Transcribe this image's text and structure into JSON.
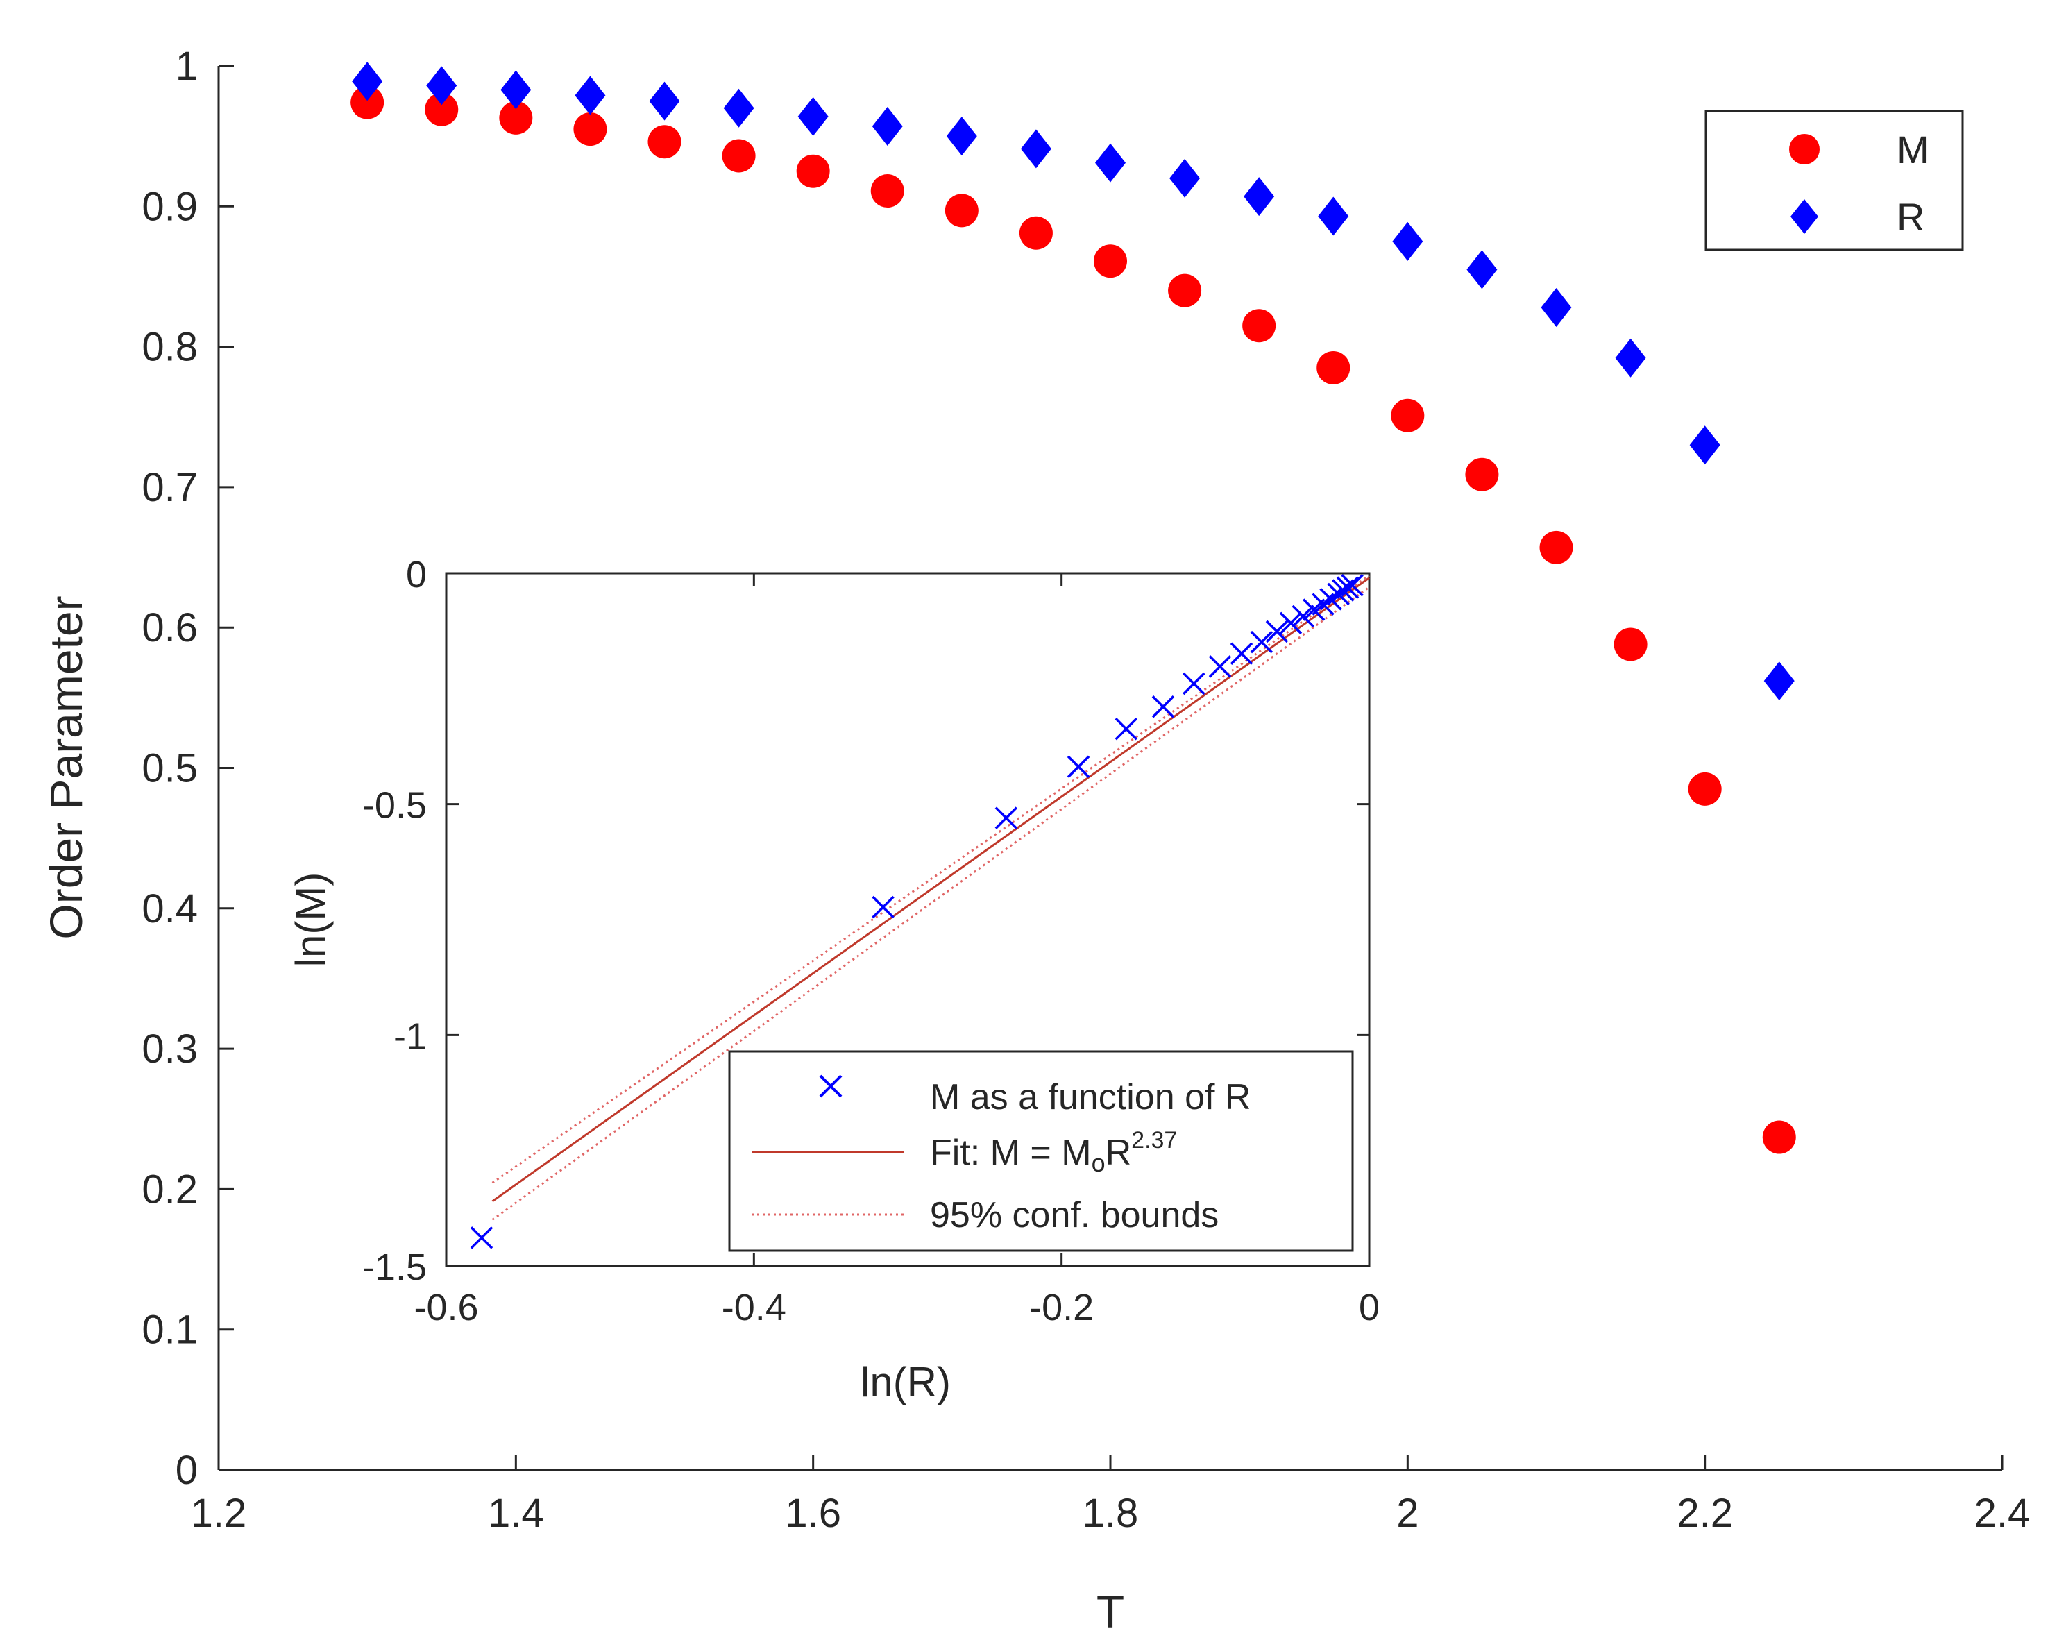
{
  "chart_data": [
    {
      "type": "scatter",
      "xlabel": "T",
      "ylabel": "Order Parameter",
      "xlim": [
        1.2,
        2.4
      ],
      "ylim": [
        0,
        1
      ],
      "x_ticks": [
        "1.2",
        "1.4",
        "1.6",
        "1.8",
        "2",
        "2.2",
        "2.4"
      ],
      "y_ticks": [
        "0",
        "0.1",
        "0.2",
        "0.3",
        "0.4",
        "0.5",
        "0.6",
        "0.7",
        "0.8",
        "0.9",
        "1"
      ],
      "legend_position": "top-right",
      "x": [
        1.3,
        1.35,
        1.4,
        1.45,
        1.5,
        1.55,
        1.6,
        1.65,
        1.7,
        1.75,
        1.8,
        1.85,
        1.9,
        1.95,
        2.0,
        2.05,
        2.1,
        2.15,
        2.2,
        2.25
      ],
      "series": [
        {
          "name": "M",
          "marker": "circle",
          "color": "#ff0000",
          "values": [
            0.974,
            0.969,
            0.963,
            0.955,
            0.946,
            0.936,
            0.925,
            0.911,
            0.897,
            0.881,
            0.861,
            0.84,
            0.815,
            0.785,
            0.751,
            0.709,
            0.657,
            0.588,
            0.485,
            0.237
          ]
        },
        {
          "name": "R",
          "marker": "diamond",
          "color": "#0000ff",
          "values": [
            0.989,
            0.986,
            0.983,
            0.979,
            0.975,
            0.97,
            0.964,
            0.957,
            0.95,
            0.941,
            0.931,
            0.92,
            0.907,
            0.893,
            0.875,
            0.855,
            0.828,
            0.792,
            0.73,
            0.562
          ]
        }
      ]
    },
    {
      "type": "scatter",
      "role": "inset",
      "xlabel": "ln(R)",
      "ylabel": "ln(M)",
      "xlim": [
        -0.6,
        0
      ],
      "ylim": [
        -1.5,
        0
      ],
      "x_ticks": [
        "-0.6",
        "-0.4",
        "-0.2",
        "0"
      ],
      "y_ticks": [
        "-1.5",
        "-1",
        "-0.5",
        "0"
      ],
      "legend_position": "bottom-right",
      "series": [
        {
          "name": "M as a function of R",
          "marker": "x",
          "color": "#0000ff",
          "x": [
            -0.577,
            -0.316,
            -0.236,
            -0.189,
            -0.158,
            -0.134,
            -0.114,
            -0.097,
            -0.083,
            -0.07,
            -0.06,
            -0.051,
            -0.043,
            -0.036,
            -0.03,
            -0.025,
            -0.02,
            -0.017,
            -0.014,
            -0.011
          ],
          "y": [
            -1.439,
            -0.723,
            -0.53,
            -0.419,
            -0.337,
            -0.289,
            -0.239,
            -0.202,
            -0.174,
            -0.149,
            -0.126,
            -0.108,
            -0.093,
            -0.079,
            -0.067,
            -0.056,
            -0.045,
            -0.037,
            -0.031,
            -0.026
          ]
        },
        {
          "name": "Fit:  M = M",
          "name_sub": "o",
          "name_tail": "R",
          "name_sup": "2.37",
          "style": "solid-line",
          "color": "#c0392b",
          "x": [
            -0.57,
            0
          ],
          "y": [
            -1.36,
            -0.01
          ]
        },
        {
          "name": "95% conf. bounds",
          "style": "dotted-line",
          "color": "#e06666",
          "upper": {
            "x": [
              -0.57,
              0
            ],
            "y": [
              -1.32,
              -0.005
            ]
          },
          "lower": {
            "x": [
              -0.57,
              0
            ],
            "y": [
              -1.4,
              -0.03
            ]
          }
        }
      ]
    }
  ]
}
